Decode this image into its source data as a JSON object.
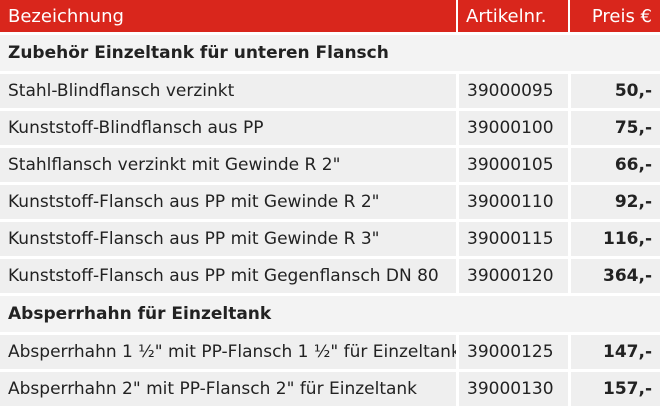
{
  "header": {
    "bezeichnung": "Bezeichnung",
    "artikelnr": "Artikelnr.",
    "preis": "Preis €"
  },
  "colors": {
    "header_bg": "#d9261c",
    "row_bg": "#efefef",
    "section_bg": "#f3f3f3"
  },
  "sections": [
    {
      "title": "Zubehör Einzeltank für unteren Flansch",
      "rows": [
        {
          "name": "Stahl-Blindflansch verzinkt",
          "art": "39000095",
          "price": "50,-"
        },
        {
          "name": "Kunststoff-Blindflansch aus PP",
          "art": "39000100",
          "price": "75,-"
        },
        {
          "name": "Stahlflansch verzinkt mit Gewinde R 2\"",
          "art": "39000105",
          "price": "66,-"
        },
        {
          "name": "Kunststoff-Flansch aus PP mit Gewinde R 2\"",
          "art": "39000110",
          "price": "92,-"
        },
        {
          "name": "Kunststoff-Flansch aus PP mit Gewinde R 3\"",
          "art": "39000115",
          "price": "116,-"
        },
        {
          "name": "Kunststoff-Flansch aus PP mit Gegenflansch DN 80",
          "art": "39000120",
          "price": "364,-"
        }
      ]
    },
    {
      "title": "Absperrhahn für Einzeltank",
      "rows": [
        {
          "name": "Absperrhahn 1 ½\" mit PP-Flansch 1 ½\" für Einzeltank",
          "art": "39000125",
          "price": "147,-"
        },
        {
          "name": "Absperrhahn 2\" mit PP-Flansch 2\" für Einzeltank",
          "art": "39000130",
          "price": "157,-"
        }
      ]
    }
  ]
}
